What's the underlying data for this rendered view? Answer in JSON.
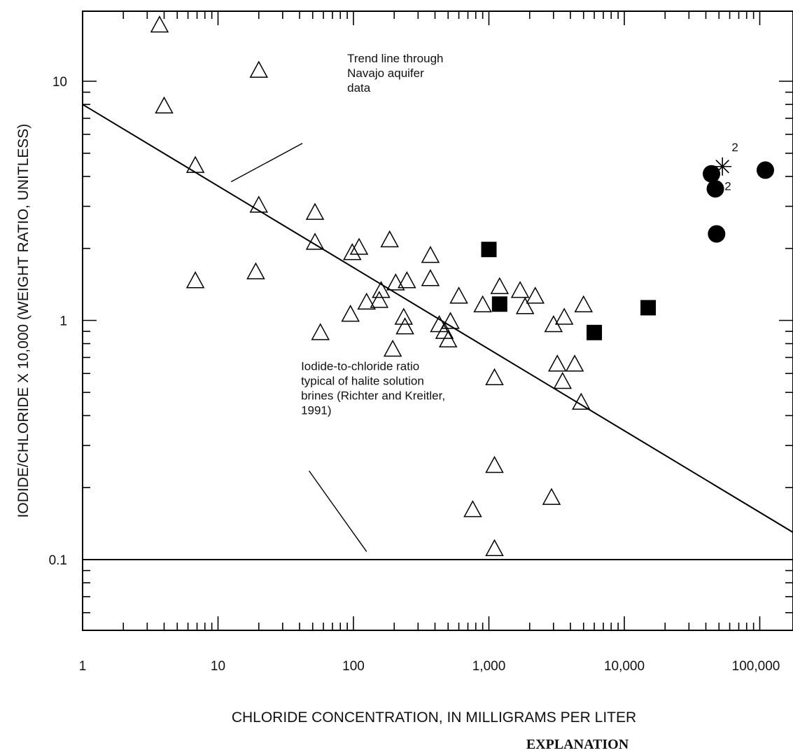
{
  "chart_data": {
    "type": "scatter",
    "title": "",
    "xlabel": "CHLORIDE CONCENTRATION, IN MILLIGRAMS PER LITER",
    "ylabel": "IODIDE/CHLORIDE X 10,000 (WEIGHT RATIO, UNITLESS)",
    "x_scale": "log",
    "y_scale": "log",
    "xlim": [
      1,
      200000
    ],
    "ylim": [
      0.05,
      20
    ],
    "grid": false,
    "x_tick_labels": [
      {
        "value": 1,
        "label": "1"
      },
      {
        "value": 10,
        "label": "10"
      },
      {
        "value": 100,
        "label": "100"
      },
      {
        "value": 1000,
        "label": "1,000"
      },
      {
        "value": 10000,
        "label": "10,000"
      },
      {
        "value": 100000,
        "label": "100,000"
      }
    ],
    "y_tick_labels": [
      {
        "value": 0.1,
        "label": "0.1"
      },
      {
        "value": 1,
        "label": "1"
      },
      {
        "value": 10,
        "label": "10"
      }
    ],
    "series": [
      {
        "marker": "open-triangle",
        "points": [
          [
            3.7,
            17
          ],
          [
            4,
            7.8
          ],
          [
            20,
            11
          ],
          [
            6.8,
            4.4
          ],
          [
            20,
            3
          ],
          [
            6.8,
            1.45
          ],
          [
            19,
            1.58
          ],
          [
            52,
            2.8
          ],
          [
            52,
            2.1
          ],
          [
            57,
            0.88
          ],
          [
            95,
            1.05
          ],
          [
            98,
            1.9
          ],
          [
            110,
            2
          ],
          [
            125,
            1.18
          ],
          [
            155,
            1.2
          ],
          [
            160,
            1.32
          ],
          [
            185,
            2.15
          ],
          [
            195,
            0.75
          ],
          [
            205,
            1.42
          ],
          [
            235,
            1.02
          ],
          [
            240,
            0.93
          ],
          [
            248,
            1.45
          ],
          [
            370,
            1.85
          ],
          [
            370,
            1.48
          ],
          [
            430,
            0.95
          ],
          [
            470,
            0.89
          ],
          [
            500,
            0.82
          ],
          [
            520,
            0.98
          ],
          [
            600,
            1.25
          ],
          [
            760,
            0.16
          ],
          [
            900,
            1.15
          ],
          [
            1100,
            0.57
          ],
          [
            1100,
            0.245
          ],
          [
            1100,
            0.11
          ],
          [
            1200,
            1.37
          ],
          [
            1700,
            1.32
          ],
          [
            1850,
            1.13
          ],
          [
            2200,
            1.25
          ],
          [
            2900,
            0.18
          ],
          [
            3000,
            0.95
          ],
          [
            3200,
            0.65
          ],
          [
            3500,
            0.55
          ],
          [
            3600,
            1.02
          ],
          [
            4300,
            0.65
          ],
          [
            4800,
            0.45
          ],
          [
            5000,
            1.15
          ]
        ]
      },
      {
        "marker": "filled-square",
        "points": [
          [
            1000,
            1.98
          ],
          [
            1200,
            1.17
          ],
          [
            6000,
            0.89
          ],
          [
            15000,
            1.13
          ]
        ]
      },
      {
        "marker": "filled-circle",
        "points": [
          [
            44000,
            4.1
          ],
          [
            47000,
            3.55
          ],
          [
            48000,
            2.3
          ],
          [
            110000,
            4.25
          ]
        ]
      },
      {
        "marker": "asterisk",
        "points": [
          [
            53000,
            4.4
          ]
        ]
      }
    ],
    "point_labels": [
      {
        "text": "2",
        "x": 62000,
        "y": 5.1
      },
      {
        "text": "2",
        "x": 55000,
        "y": 3.5
      }
    ],
    "reference_lines": [
      {
        "kind": "trend",
        "from": [
          1,
          8
        ],
        "to": [
          200000,
          0.13
        ]
      },
      {
        "kind": "horizontal",
        "y": 0.1
      }
    ],
    "annotations": [
      {
        "lines": [
          "Trend line through",
          "Navajo aquifer",
          "data"
        ],
        "anchor": [
          90,
          12
        ],
        "leader_from": [
          42,
          5.5
        ],
        "leader_to": [
          12.5,
          3.8
        ]
      },
      {
        "lines": [
          "Iodide-to-chloride ratio",
          "typical of halite solution",
          "brines (Richter and Kreitler,",
          "1991)"
        ],
        "anchor": [
          41,
          0.62
        ],
        "leader_from": [
          47,
          0.235
        ],
        "leader_to": [
          125,
          0.108
        ]
      }
    ],
    "explanation_heading": "EXPLANATION"
  }
}
